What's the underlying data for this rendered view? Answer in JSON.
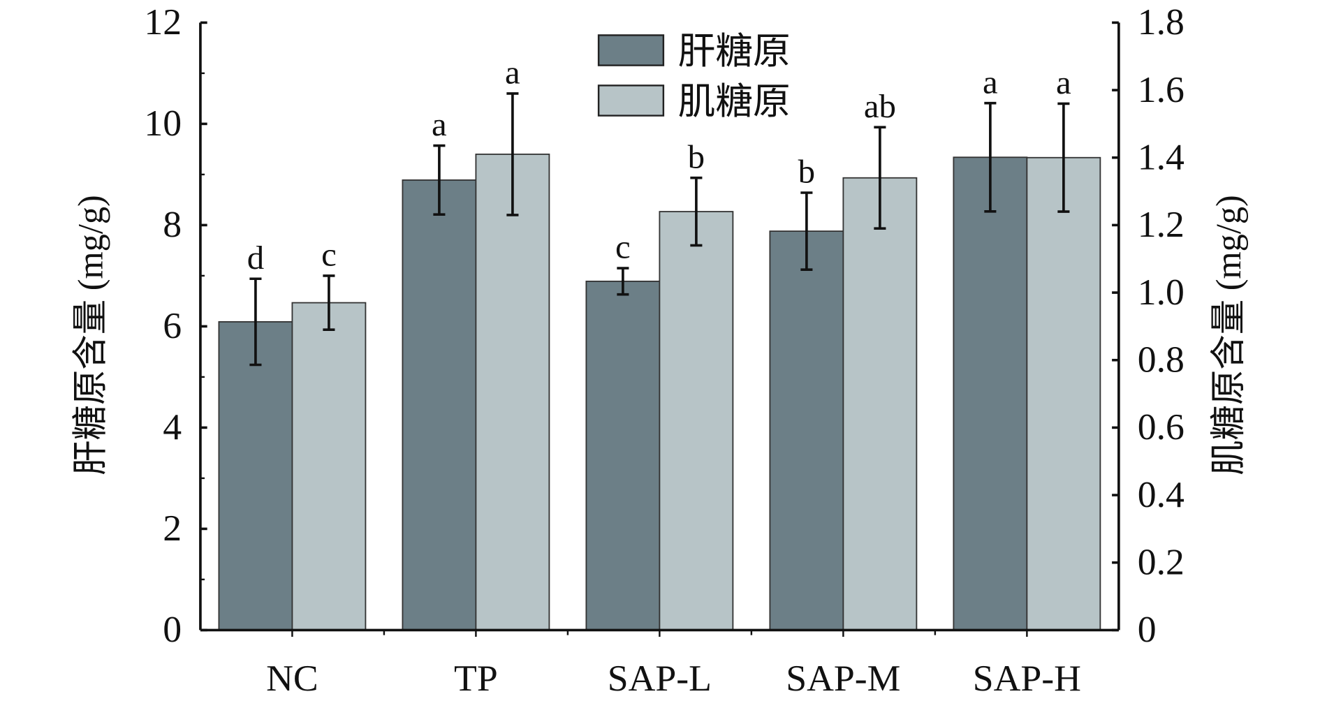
{
  "chart_data": {
    "type": "bar",
    "categories": [
      "NC",
      "TP",
      "SAP-L",
      "SAP-M",
      "SAP-H"
    ],
    "ylabel": "肝糖原含量 (mg/g)",
    "y2label": "肌糖原含量 (mg/g)",
    "ylim": [
      0,
      12
    ],
    "y2lim": [
      0,
      1.8
    ],
    "yticks": [
      "0",
      "2",
      "4",
      "6",
      "8",
      "10",
      "12"
    ],
    "y2ticks": [
      "0",
      "0.2",
      "0.4",
      "0.6",
      "0.8",
      "1.0",
      "1.2",
      "1.4",
      "1.6",
      "1.8"
    ],
    "legend_position": "top-center",
    "series": [
      {
        "name": "肝糖原",
        "axis": "left",
        "color": "#6c7f87",
        "values": [
          6.09,
          8.89,
          6.89,
          7.88,
          9.34
        ],
        "errors": [
          0.85,
          0.68,
          0.26,
          0.76,
          1.07
        ],
        "letters": [
          "d",
          "a",
          "c",
          "b",
          "a"
        ]
      },
      {
        "name": "肌糖原",
        "axis": "right",
        "color": "#b7c4c7",
        "values": [
          0.97,
          1.41,
          1.24,
          1.34,
          1.4
        ],
        "errors": [
          0.08,
          0.18,
          0.1,
          0.15,
          0.16
        ],
        "letters": [
          "c",
          "a",
          "b",
          "ab",
          "a"
        ]
      }
    ]
  }
}
